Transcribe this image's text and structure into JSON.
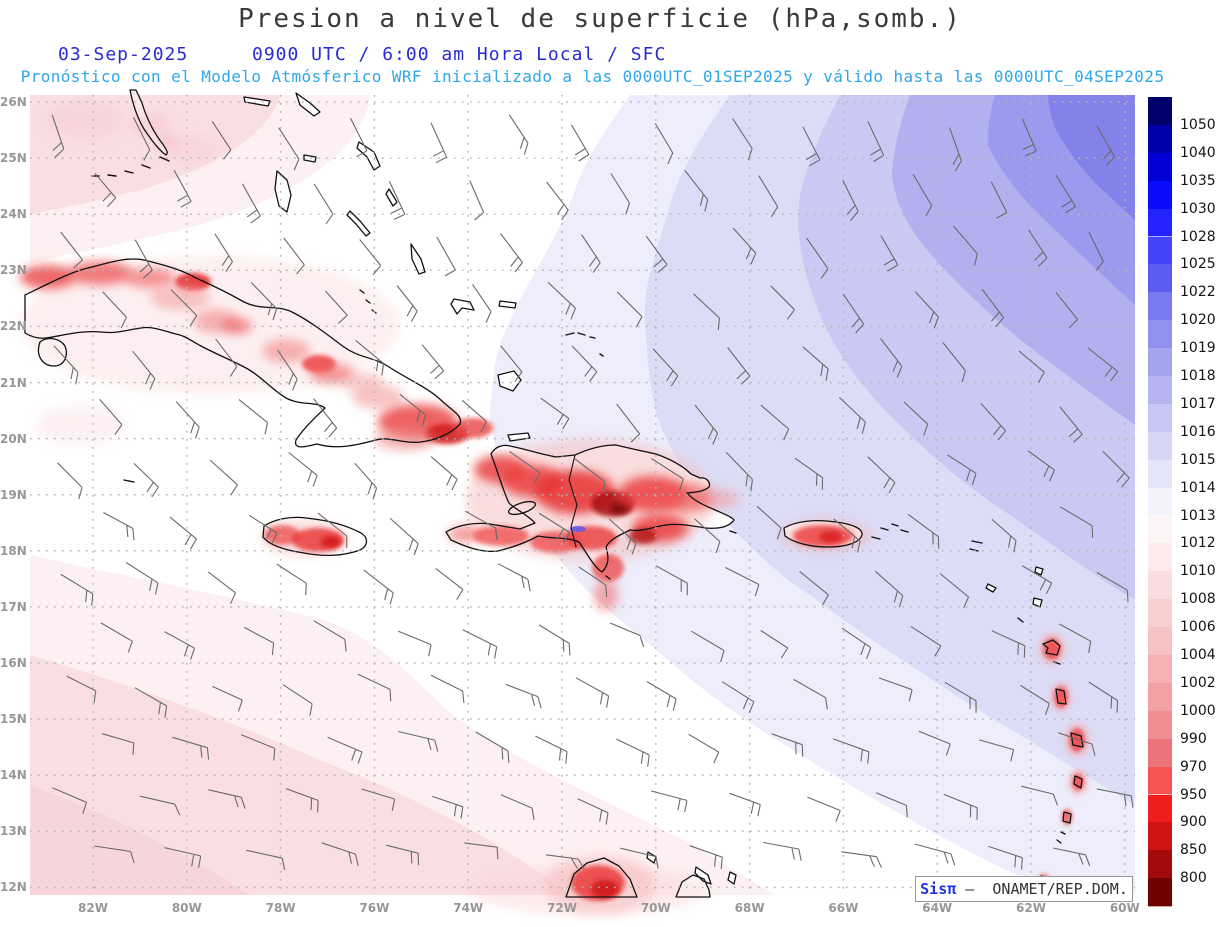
{
  "title": "Presion a nivel de superficie (hPa,somb.)",
  "header": {
    "date": "03-Sep-2025",
    "time_line": "0900 UTC / 6:00 am Hora Local / SFC",
    "forecast_line": "Pronóstico con el Modelo Atmósferico WRF inicializado a las 0000UTC_01SEP2025 y válido hasta las  0000UTC_04SEP2025"
  },
  "axes": {
    "lat_labels": [
      "26N",
      "25N",
      "24N",
      "23N",
      "22N",
      "21N",
      "20N",
      "19N",
      "18N",
      "17N",
      "16N",
      "15N",
      "14N",
      "13N",
      "12N"
    ],
    "lon_labels": [
      "82W",
      "80W",
      "78W",
      "76W",
      "74W",
      "72W",
      "70W",
      "68W",
      "66W",
      "64W",
      "62W",
      "60W"
    ]
  },
  "colorbar": {
    "units": "hPa",
    "levels": [
      1050,
      1040,
      1035,
      1030,
      1028,
      1025,
      1022,
      1020,
      1019,
      1018,
      1017,
      1016,
      1015,
      1014,
      1013,
      1012,
      1010,
      1008,
      1006,
      1004,
      1002,
      1000,
      990,
      970,
      950,
      900,
      850,
      800
    ],
    "colors": [
      "#00006b",
      "#0000a8",
      "#0000d6",
      "#0a0aff",
      "#2323ff",
      "#4444fa",
      "#5c5cf1",
      "#7979f0",
      "#9090ee",
      "#a3a3f0",
      "#b5b5f2",
      "#c6c6f4",
      "#d6d6f7",
      "#e5e5f9",
      "#f2f2fc",
      "#fdf4f5",
      "#fceaeb",
      "#faddde",
      "#f8d0d2",
      "#f6c2c4",
      "#f4b2b5",
      "#f2a2a5",
      "#ef8e91",
      "#ec7478",
      "#f65353",
      "#f01d1d",
      "#cf1414",
      "#a30b0b",
      "#700202"
    ]
  },
  "attribution": {
    "brand": "Sisπ",
    "separator": " –  ",
    "org": "ONAMET/REP.DOM."
  },
  "map": {
    "region": "Caribbean (Cuba, Hispaniola, Jamaica, Puerto Rico, Lesser Antilles)",
    "field": "surface pressure shading with wind barbs",
    "high_pressure_color": "#8282ea",
    "low_pressure_color": "#e93232"
  }
}
